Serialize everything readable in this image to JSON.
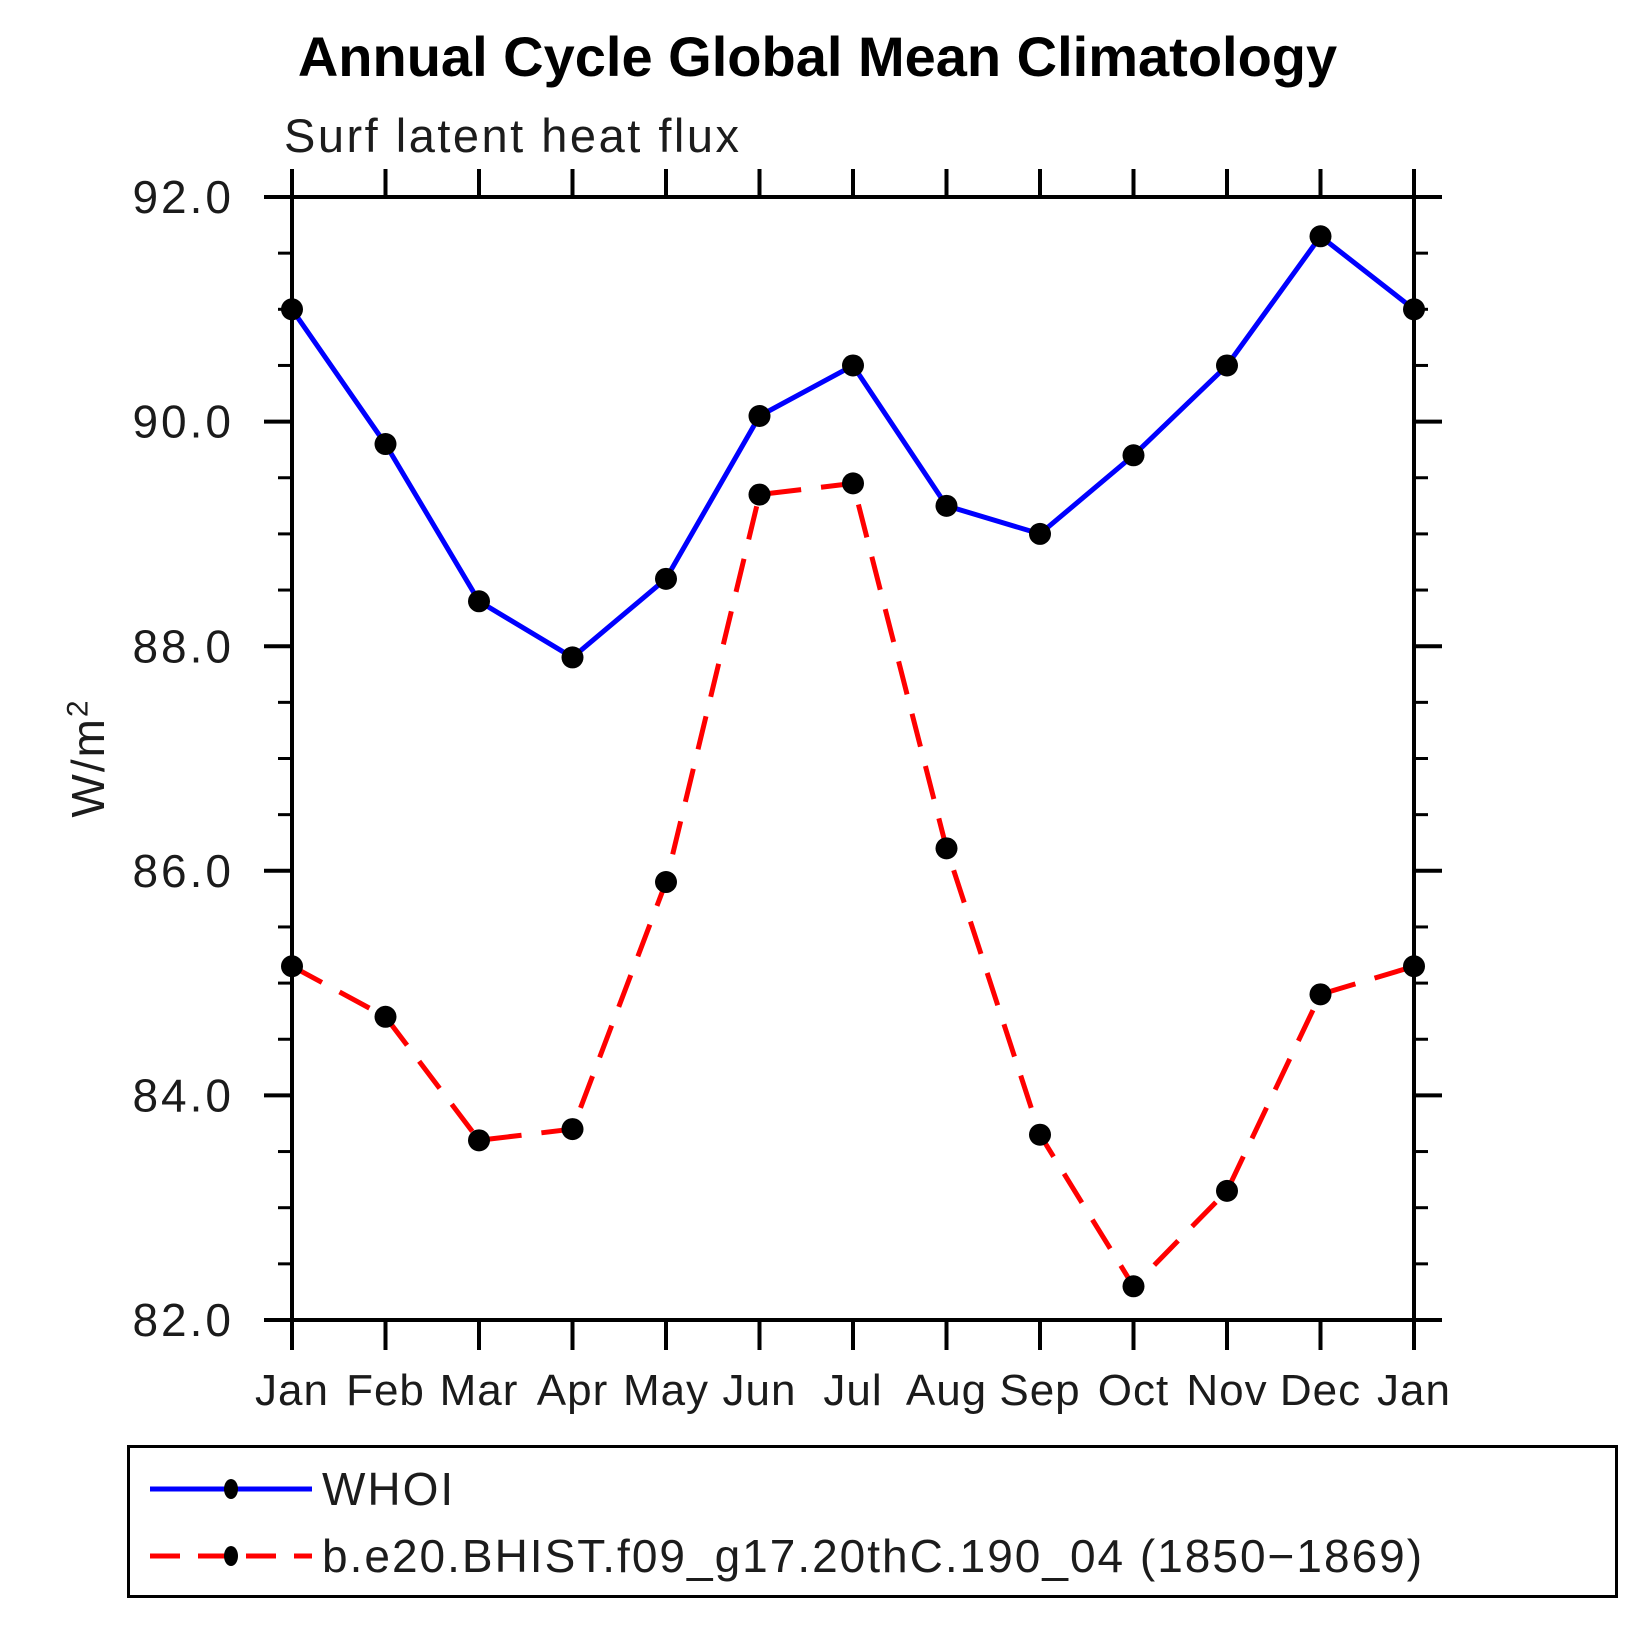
{
  "page": {
    "background": "#ffffff"
  },
  "axis": {
    "y_label_base": "W/m",
    "y_label_exponent": "2",
    "x_tick_labels": [
      "Jan",
      "Feb",
      "Mar",
      "Apr",
      "May",
      "Jun",
      "Jul",
      "Aug",
      "Sep",
      "Oct",
      "Nov",
      "Dec",
      "Jan"
    ],
    "y_tick_labels": [
      "82.0",
      "84.0",
      "86.0",
      "88.0",
      "90.0",
      "92.0"
    ]
  },
  "colors": {
    "frame": "#000000",
    "marker": "#000000",
    "whoi_line": "#0000ff",
    "model_line": "#ff0000",
    "text": "#1b1b1b"
  },
  "chart_data": {
    "type": "line",
    "title": "Annual Cycle Global Mean Climatology",
    "subtitle": "Surf latent heat flux",
    "ylabel": "W/m²",
    "xlabel": "",
    "categories": [
      "Jan",
      "Feb",
      "Mar",
      "Apr",
      "May",
      "Jun",
      "Jul",
      "Aug",
      "Sep",
      "Oct",
      "Nov",
      "Dec",
      "Jan"
    ],
    "ylim": [
      82.0,
      92.0
    ],
    "ytick_interval": 2.0,
    "yminor_interval": 0.5,
    "ytick_labels": [
      "82.0",
      "84.0",
      "86.0",
      "88.0",
      "90.0",
      "92.0"
    ],
    "grid": false,
    "legend_position": "bottom",
    "series": [
      {
        "name": "WHOI",
        "color": "#0000ff",
        "line_style": "solid",
        "marker": "filled-circle",
        "marker_color": "#000000",
        "values": [
          91.0,
          89.8,
          88.4,
          87.9,
          88.6,
          90.05,
          90.5,
          89.25,
          89.0,
          89.7,
          90.5,
          91.65,
          91.0
        ]
      },
      {
        "name": "b.e20.BHIST.f09_g17.20thC.190_04 (1850−1869)",
        "color": "#ff0000",
        "line_style": "dashed",
        "marker": "filled-circle",
        "marker_color": "#000000",
        "values": [
          85.15,
          84.7,
          83.6,
          83.7,
          85.9,
          89.35,
          89.45,
          86.2,
          83.65,
          82.3,
          83.15,
          84.9,
          85.15
        ]
      }
    ]
  }
}
